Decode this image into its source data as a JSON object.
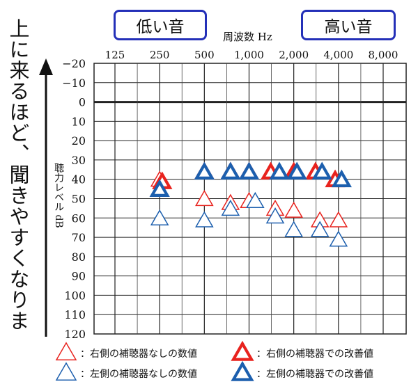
{
  "side_caption": "上に来るほど、聞きやすくなります",
  "labels": {
    "low": "低い音",
    "high": "高い音"
  },
  "chart_data": {
    "type": "scatter",
    "xlabel": "周波数 Hz",
    "ylabel": "聴力レベル dB",
    "x_ticks": [
      "125",
      "250",
      "500",
      "1,000",
      "2,000",
      "4,000",
      "8,000"
    ],
    "y_ticks": [
      -20,
      -10,
      0,
      10,
      20,
      30,
      40,
      50,
      60,
      70,
      80,
      90,
      100,
      110,
      120
    ],
    "ylim": [
      -20,
      120
    ],
    "y_inverted": true,
    "grid": true,
    "legend_position": "bottom",
    "colors": {
      "right": "#e8231e",
      "left": "#1c5fae"
    },
    "series": [
      {
        "name": "右側の補聴器なしの数値",
        "style": "thin",
        "color": "#e8231e",
        "points": [
          {
            "x": 250,
            "y": 40
          },
          {
            "x": 500,
            "y": 50
          },
          {
            "x": 750,
            "y": 52
          },
          {
            "x": 1000,
            "y": 51
          },
          {
            "x": 1500,
            "y": 55
          },
          {
            "x": 2000,
            "y": 56
          },
          {
            "x": 3000,
            "y": 61
          },
          {
            "x": 4000,
            "y": 61
          }
        ]
      },
      {
        "name": "左側の補聴器なしの数値",
        "style": "thin",
        "color": "#1c5fae",
        "points": [
          {
            "x": 250,
            "y": 60
          },
          {
            "x": 500,
            "y": 61
          },
          {
            "x": 750,
            "y": 55
          },
          {
            "x": 1100,
            "y": 51
          },
          {
            "x": 1500,
            "y": 59
          },
          {
            "x": 2000,
            "y": 66
          },
          {
            "x": 3000,
            "y": 66
          },
          {
            "x": 4000,
            "y": 71
          }
        ]
      },
      {
        "name": "右側の補聴器での改善値",
        "style": "bold",
        "color": "#e8231e",
        "points": [
          {
            "x": 260,
            "y": 41
          },
          {
            "x": 500,
            "y": 36
          },
          {
            "x": 750,
            "y": 36
          },
          {
            "x": 1000,
            "y": 36
          },
          {
            "x": 1400,
            "y": 36
          },
          {
            "x": 2000,
            "y": 36
          },
          {
            "x": 2800,
            "y": 36
          },
          {
            "x": 3800,
            "y": 40
          }
        ]
      },
      {
        "name": "左側の補聴器での改善値",
        "style": "bold",
        "color": "#1c5fae",
        "points": [
          {
            "x": 250,
            "y": 45
          },
          {
            "x": 500,
            "y": 36
          },
          {
            "x": 750,
            "y": 36
          },
          {
            "x": 1000,
            "y": 36
          },
          {
            "x": 1600,
            "y": 36
          },
          {
            "x": 2100,
            "y": 36
          },
          {
            "x": 3100,
            "y": 36
          },
          {
            "x": 4200,
            "y": 40
          }
        ]
      }
    ]
  }
}
